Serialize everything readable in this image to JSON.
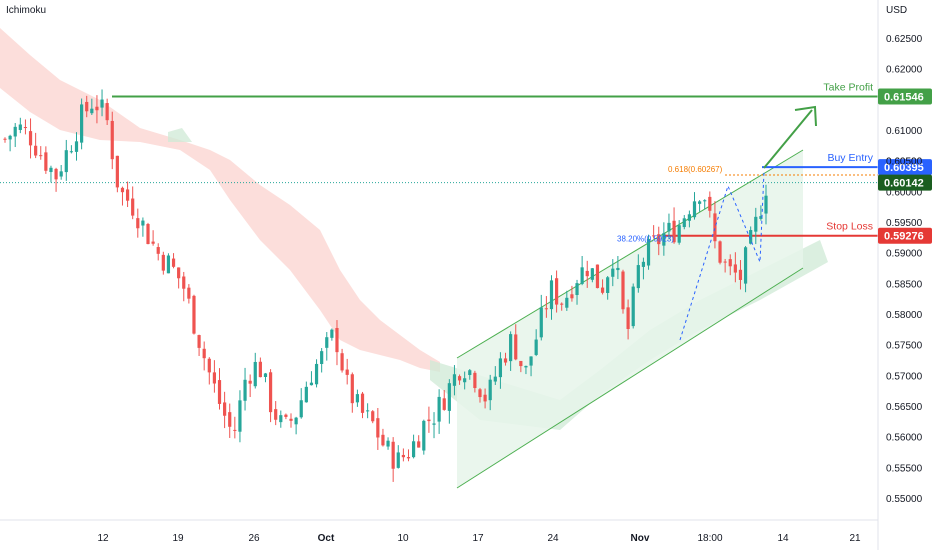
{
  "indicator": "Ichimoku",
  "currency": "USD",
  "colors": {
    "up": "#26a69a",
    "down": "#ef5350",
    "take_profit": "#43a047",
    "buy_entry": "#2962ff",
    "stop_loss": "#e53935",
    "current": "#1b5e20",
    "fib": "#f57c00",
    "cloud_red": "#fbd3cf",
    "cloud_green": "#cfe9d6",
    "channel": "#4caf50"
  },
  "chart_data": {
    "type": "candlestick",
    "y_ticks": [
      "0.62500",
      "0.62000",
      "0.61500",
      "0.61000",
      "0.60500",
      "0.60000",
      "0.59500",
      "0.59000",
      "0.58500",
      "0.58000",
      "0.57500",
      "0.57000",
      "0.56500",
      "0.56000",
      "0.55500",
      "0.55000"
    ],
    "x_ticks": [
      "12",
      "19",
      "26",
      "Oct",
      "10",
      "17",
      "24",
      "Nov",
      "18:00",
      "14",
      "21"
    ],
    "ylim": [
      0.5465,
      0.6285
    ],
    "price_path": [
      0.6085,
      0.6105,
      0.609,
      0.6055,
      0.6025,
      0.607,
      0.612,
      0.615,
      0.612,
      0.6,
      0.598,
      0.594,
      0.59,
      0.588,
      0.585,
      0.578,
      0.571,
      0.565,
      0.56,
      0.57,
      0.572,
      0.565,
      0.561,
      0.564,
      0.57,
      0.573,
      0.577,
      0.568,
      0.564,
      0.562,
      0.558,
      0.556,
      0.558,
      0.562,
      0.564,
      0.568,
      0.572,
      0.57,
      0.566,
      0.572,
      0.576,
      0.57,
      0.577,
      0.584,
      0.582,
      0.586,
      0.588,
      0.584,
      0.59,
      0.576,
      0.588,
      0.591,
      0.593,
      0.594,
      0.598,
      0.601,
      0.591,
      0.587,
      0.586,
      0.593,
      0.601
    ],
    "levels": [
      {
        "name": "Take Profit",
        "value": "0.61546"
      },
      {
        "name": "Buy Entry",
        "value": "0.60395"
      },
      {
        "name": "Current",
        "value": "0.60142"
      },
      {
        "name": "Stop Loss",
        "value": "0.59276"
      }
    ],
    "fib_levels": [
      {
        "label": "0.618(0.60267)",
        "value": 0.60267
      },
      {
        "label": "38.20%(0.5923)",
        "value": 0.5923
      }
    ],
    "partial_label": "0.60500",
    "grid": false
  }
}
